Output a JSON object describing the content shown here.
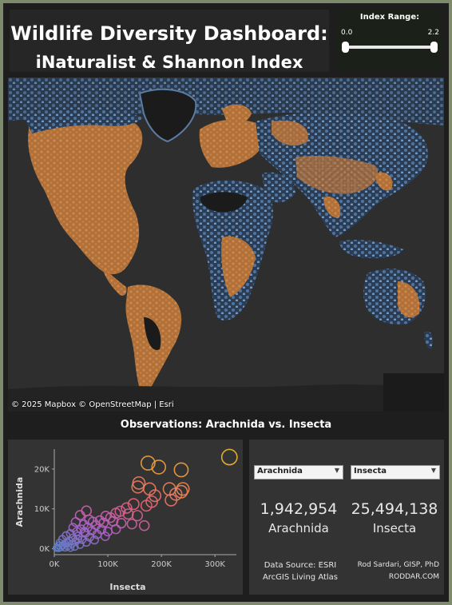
{
  "header": {
    "title_line1": "Wildlife Diversity Dashboard:",
    "title_line2": "iNaturalist & Shannon Index"
  },
  "index_range": {
    "label": "Index Range:",
    "min_label": "0.0",
    "max_label": "2.2",
    "low_value": 0.0,
    "high_value": 2.2
  },
  "map": {
    "attribution": "© 2025 Mapbox  © OpenStreetMap | Esri",
    "colors": {
      "background": "#2e2e2e",
      "land": "#1b1b1b",
      "high": "#c47a3e",
      "low": "#4a6e93",
      "edge": "#8fb0d2"
    }
  },
  "observations": {
    "title": "Observations: Arachnida vs. Insecta"
  },
  "chart_data": {
    "type": "scatter",
    "xlabel": "Insecta",
    "ylabel": "Arachnida",
    "xlim": [
      0,
      340000
    ],
    "ylim": [
      -1500,
      25000
    ],
    "x_ticks": [
      0,
      100000,
      200000,
      300000
    ],
    "x_tick_labels": [
      "0K",
      "100K",
      "200K",
      "300K"
    ],
    "y_ticks": [
      0,
      10000,
      20000
    ],
    "y_tick_labels": [
      "0K",
      "10K",
      "20K"
    ],
    "grid": false,
    "color_scale": [
      "#5b7fc4",
      "#b060c8",
      "#e8607a",
      "#f08850",
      "#f2b830"
    ],
    "points": [
      [
        327000,
        23000
      ],
      [
        175000,
        21500
      ],
      [
        195000,
        20500
      ],
      [
        237000,
        19800
      ],
      [
        158000,
        16500
      ],
      [
        215000,
        15000
      ],
      [
        240000,
        15000
      ],
      [
        237000,
        14300
      ],
      [
        156000,
        15500
      ],
      [
        178000,
        15000
      ],
      [
        227000,
        13700
      ],
      [
        188000,
        13300
      ],
      [
        218000,
        12200
      ],
      [
        182000,
        11800
      ],
      [
        172000,
        10800
      ],
      [
        148000,
        11200
      ],
      [
        135000,
        10200
      ],
      [
        123000,
        9400
      ],
      [
        138000,
        8700
      ],
      [
        155000,
        8300
      ],
      [
        115000,
        8900
      ],
      [
        96000,
        8200
      ],
      [
        105000,
        7800
      ],
      [
        110000,
        6900
      ],
      [
        125000,
        6400
      ],
      [
        145000,
        6200
      ],
      [
        168000,
        5800
      ],
      [
        85000,
        7100
      ],
      [
        92000,
        6500
      ],
      [
        72000,
        6800
      ],
      [
        78000,
        5900
      ],
      [
        60000,
        9500
      ],
      [
        65000,
        7300
      ],
      [
        48000,
        8400
      ],
      [
        55000,
        6100
      ],
      [
        40000,
        6700
      ],
      [
        62000,
        5300
      ],
      [
        88000,
        4800
      ],
      [
        100000,
        4300
      ],
      [
        115000,
        4900
      ],
      [
        70000,
        4500
      ],
      [
        50000,
        4900
      ],
      [
        35000,
        5300
      ],
      [
        42000,
        4300
      ],
      [
        58000,
        3900
      ],
      [
        80000,
        3600
      ],
      [
        95000,
        3100
      ],
      [
        30000,
        3800
      ],
      [
        45000,
        3200
      ],
      [
        66000,
        2900
      ],
      [
        22000,
        3300
      ],
      [
        35000,
        2700
      ],
      [
        52000,
        2300
      ],
      [
        75000,
        2200
      ],
      [
        15000,
        2400
      ],
      [
        28000,
        2000
      ],
      [
        40000,
        1800
      ],
      [
        60000,
        1600
      ],
      [
        10000,
        1500
      ],
      [
        20000,
        1300
      ],
      [
        33000,
        1200
      ],
      [
        48000,
        1000
      ],
      [
        8000,
        800
      ],
      [
        15000,
        700
      ],
      [
        25000,
        600
      ],
      [
        38000,
        500
      ],
      [
        5000,
        400
      ],
      [
        12000,
        300
      ],
      [
        20000,
        250
      ],
      [
        30000,
        200
      ],
      [
        4000,
        150
      ],
      [
        8000,
        100
      ],
      [
        16000,
        900
      ],
      [
        24000,
        1500
      ],
      [
        44000,
        2400
      ],
      [
        56000,
        4200
      ]
    ]
  },
  "stats": {
    "dropdown1": "Arachnida",
    "dropdown2": "Insecta",
    "count1": "1,942,954",
    "label1": "Arachnida",
    "count2": "25,494,138",
    "label2": "Insecta",
    "source_line1": "Data Source: ESRI",
    "source_line2": "ArcGIS Living Atlas",
    "author_line1": "Rod Sardari, GISP, PhD",
    "author_line2": "RODDAR.COM"
  }
}
